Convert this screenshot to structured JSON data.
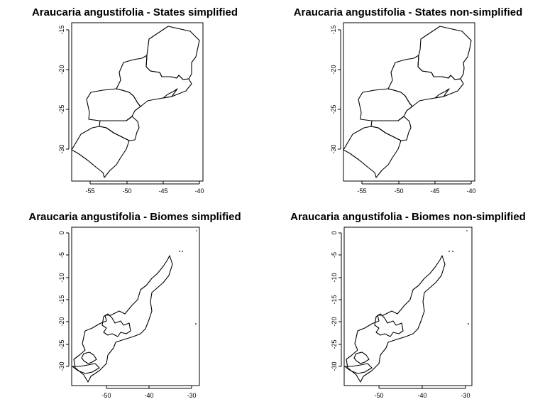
{
  "panels": [
    {
      "title": "Araucaria angustifolia - States simplified",
      "xticks": [
        "-55",
        "-50",
        "-45",
        "-40"
      ],
      "yticks": [
        "-15",
        "-20",
        "-25",
        "-30"
      ]
    },
    {
      "title": "Araucaria angustifolia - States non-simplified",
      "xticks": [
        "-55",
        "-50",
        "-45",
        "-40"
      ],
      "yticks": [
        "-15",
        "-20",
        "-25",
        "-30"
      ]
    },
    {
      "title": "Araucaria angustifolia - Biomes simplified",
      "xticks": [
        "-50",
        "-40",
        "-30"
      ],
      "yticks": [
        "0",
        "-5",
        "-10",
        "-15",
        "-20",
        "-25",
        "-30"
      ]
    },
    {
      "title": "Araucaria angustifolia - Biomes non-simplified",
      "xticks": [
        "-50",
        "-40",
        "-30"
      ],
      "yticks": [
        "0",
        "-5",
        "-10",
        "-15",
        "-20",
        "-25",
        "-30"
      ]
    }
  ]
}
